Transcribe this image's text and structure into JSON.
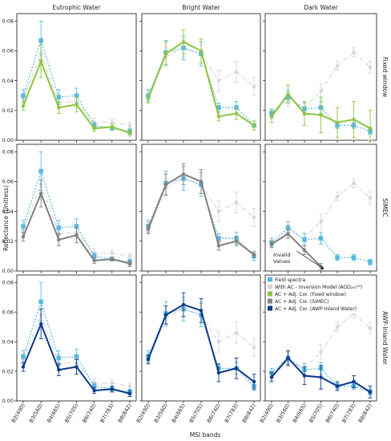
{
  "chart_data": {
    "type": "line",
    "xlabel": "MSI bands",
    "ylabel": "Reflectance (Unitless)",
    "ylim": [
      0,
      0.085
    ],
    "yticks": [
      0.0,
      0.02,
      0.04,
      0.06,
      0.08
    ],
    "ytick_labels": [
      "0.00",
      "0.02",
      "0.04",
      "0.06",
      "0.08"
    ],
    "categories": [
      "B2(490)",
      "B3(560)",
      "B4(665)",
      "B5(705)",
      "B6(740)",
      "B7(783)",
      "B8(842)"
    ],
    "columns": [
      "Eutrophic Water",
      "Bright Water",
      "Dark Water"
    ],
    "rows": [
      "Fixed window",
      "SIMEC",
      "AWP-Inland Water"
    ],
    "legend": {
      "placement": "lower-right panel, top",
      "entries": [
        {
          "key": "field",
          "label": "Field spectra"
        },
        {
          "key": "inversion",
          "label": "With AC - Inversion Model (AOD₂₅₀⁰⁵)"
        },
        {
          "key": "fixed",
          "label": "AC + Adj. Cor. (Fixed window)"
        },
        {
          "key": "simec",
          "label": "AC + Adj. Cor. (SIMEC)"
        },
        {
          "key": "awp",
          "label": "AC + Adj. Cor. (AWP-Inland Water)"
        }
      ]
    },
    "annotation": "Invalid Values",
    "colors": {
      "field": "#5bb8e0",
      "inversion": "#d6d6d6",
      "fixed": "#8cc63f",
      "simec": "#808080",
      "awp": "#0b3a8a"
    },
    "panels": [
      {
        "row": 0,
        "col": 0,
        "corrected_key": "fixed",
        "field": [
          0.03,
          0.067,
          0.029,
          0.03,
          0.01,
          0.008,
          0.006
        ],
        "field_err": [
          0.004,
          0.013,
          0.005,
          0.005,
          0.002,
          0.001,
          0.002
        ],
        "inversion": [
          0.028,
          0.058,
          0.025,
          0.026,
          0.012,
          0.012,
          0.01
        ],
        "inversion_err": [
          0.003,
          0.01,
          0.004,
          0.004,
          0.003,
          0.002,
          0.002
        ],
        "corrected": [
          0.023,
          0.053,
          0.022,
          0.024,
          0.008,
          0.009,
          0.005
        ],
        "corrected_err": [
          0.003,
          0.011,
          0.004,
          0.005,
          0.002,
          0.002,
          0.002
        ]
      },
      {
        "row": 0,
        "col": 1,
        "corrected_key": "fixed",
        "field": [
          0.03,
          0.059,
          0.062,
          0.058,
          0.022,
          0.022,
          0.01
        ],
        "field_err": [
          0.004,
          0.008,
          0.008,
          0.008,
          0.003,
          0.004,
          0.003
        ],
        "inversion": [
          0.03,
          0.056,
          0.062,
          0.058,
          0.04,
          0.046,
          0.036
        ],
        "inversion_err": [
          0.003,
          0.006,
          0.006,
          0.006,
          0.007,
          0.007,
          0.006
        ],
        "corrected": [
          0.028,
          0.058,
          0.066,
          0.06,
          0.016,
          0.018,
          0.01
        ],
        "corrected_err": [
          0.003,
          0.008,
          0.008,
          0.008,
          0.003,
          0.004,
          0.003
        ]
      },
      {
        "row": 0,
        "col": 2,
        "corrected_key": "fixed",
        "field": [
          0.018,
          0.029,
          0.021,
          0.022,
          0.01,
          0.01,
          0.006
        ],
        "field_err": [
          0.003,
          0.004,
          0.004,
          0.004,
          0.002,
          0.002,
          0.002
        ],
        "inversion": [
          0.017,
          0.027,
          0.022,
          0.033,
          0.05,
          0.059,
          0.049
        ],
        "inversion_err": [
          0.003,
          0.004,
          0.004,
          0.005,
          0.003,
          0.003,
          0.004
        ],
        "corrected": [
          0.016,
          0.031,
          0.018,
          0.017,
          0.012,
          0.014,
          0.008
        ],
        "corrected_err": [
          0.004,
          0.006,
          0.008,
          0.012,
          0.01,
          0.012,
          0.012
        ]
      },
      {
        "row": 1,
        "col": 0,
        "corrected_key": "simec",
        "field": [
          0.03,
          0.067,
          0.029,
          0.03,
          0.01,
          0.008,
          0.006
        ],
        "field_err": [
          0.004,
          0.013,
          0.005,
          0.005,
          0.002,
          0.001,
          0.002
        ],
        "inversion": [
          0.028,
          0.058,
          0.025,
          0.026,
          0.012,
          0.012,
          0.01
        ],
        "inversion_err": [
          0.003,
          0.01,
          0.004,
          0.004,
          0.003,
          0.002,
          0.002
        ],
        "corrected": [
          0.023,
          0.052,
          0.021,
          0.024,
          0.007,
          0.008,
          0.005
        ],
        "corrected_err": [
          0.003,
          0.009,
          0.004,
          0.005,
          0.002,
          0.001,
          0.002
        ]
      },
      {
        "row": 1,
        "col": 1,
        "corrected_key": "simec",
        "field": [
          0.03,
          0.059,
          0.062,
          0.058,
          0.022,
          0.022,
          0.01
        ],
        "field_err": [
          0.004,
          0.008,
          0.008,
          0.008,
          0.003,
          0.004,
          0.003
        ],
        "inversion": [
          0.03,
          0.056,
          0.062,
          0.058,
          0.04,
          0.046,
          0.036
        ],
        "inversion_err": [
          0.003,
          0.006,
          0.006,
          0.006,
          0.007,
          0.007,
          0.006
        ],
        "corrected": [
          0.028,
          0.058,
          0.065,
          0.06,
          0.017,
          0.02,
          0.011
        ],
        "corrected_err": [
          0.003,
          0.007,
          0.007,
          0.008,
          0.003,
          0.003,
          0.002
        ]
      },
      {
        "row": 1,
        "col": 2,
        "corrected_key": "simec",
        "field": [
          0.019,
          0.029,
          0.021,
          0.022,
          0.009,
          0.009,
          0.006
        ],
        "field_err": [
          0.003,
          0.004,
          0.004,
          0.004,
          0.002,
          0.002,
          0.002
        ],
        "inversion": [
          0.017,
          0.027,
          0.022,
          0.033,
          0.05,
          0.059,
          0.049
        ],
        "inversion_err": [
          0.003,
          0.004,
          0.004,
          0.005,
          0.003,
          0.003,
          0.004
        ],
        "corrected": [
          0.018,
          0.025,
          0.014,
          0.003,
          null,
          null,
          null
        ],
        "corrected_err": [
          0.002,
          0.003,
          0.003,
          0.002,
          null,
          null,
          null
        ]
      },
      {
        "row": 2,
        "col": 0,
        "corrected_key": "awp",
        "field": [
          0.03,
          0.067,
          0.029,
          0.03,
          0.01,
          0.008,
          0.006
        ],
        "field_err": [
          0.004,
          0.013,
          0.005,
          0.005,
          0.002,
          0.001,
          0.002
        ],
        "inversion": [
          0.028,
          0.058,
          0.025,
          0.026,
          0.012,
          0.012,
          0.01
        ],
        "inversion_err": [
          0.003,
          0.01,
          0.004,
          0.004,
          0.003,
          0.002,
          0.002
        ],
        "corrected": [
          0.023,
          0.052,
          0.021,
          0.023,
          0.007,
          0.008,
          0.005
        ],
        "corrected_err": [
          0.003,
          0.01,
          0.004,
          0.005,
          0.002,
          0.002,
          0.002
        ]
      },
      {
        "row": 2,
        "col": 1,
        "corrected_key": "awp",
        "field": [
          0.03,
          0.059,
          0.062,
          0.058,
          0.022,
          0.022,
          0.01
        ],
        "field_err": [
          0.004,
          0.008,
          0.008,
          0.008,
          0.003,
          0.004,
          0.003
        ],
        "inversion": [
          0.03,
          0.056,
          0.062,
          0.058,
          0.04,
          0.046,
          0.036
        ],
        "inversion_err": [
          0.003,
          0.006,
          0.006,
          0.006,
          0.007,
          0.007,
          0.006
        ],
        "corrected": [
          0.028,
          0.058,
          0.065,
          0.061,
          0.019,
          0.022,
          0.013
        ],
        "corrected_err": [
          0.003,
          0.006,
          0.008,
          0.008,
          0.006,
          0.007,
          0.005
        ]
      },
      {
        "row": 2,
        "col": 2,
        "corrected_key": "awp",
        "field": [
          0.019,
          0.029,
          0.021,
          0.022,
          0.01,
          0.01,
          0.006
        ],
        "field_err": [
          0.003,
          0.004,
          0.004,
          0.004,
          0.002,
          0.002,
          0.002
        ],
        "inversion": [
          0.017,
          0.027,
          0.022,
          0.033,
          0.05,
          0.059,
          0.049
        ],
        "inversion_err": [
          0.003,
          0.004,
          0.004,
          0.005,
          0.003,
          0.003,
          0.004
        ],
        "corrected": [
          0.016,
          0.029,
          0.017,
          0.016,
          0.01,
          0.013,
          0.006
        ],
        "corrected_err": [
          0.003,
          0.005,
          0.006,
          0.008,
          0.003,
          0.004,
          0.004
        ]
      }
    ]
  }
}
